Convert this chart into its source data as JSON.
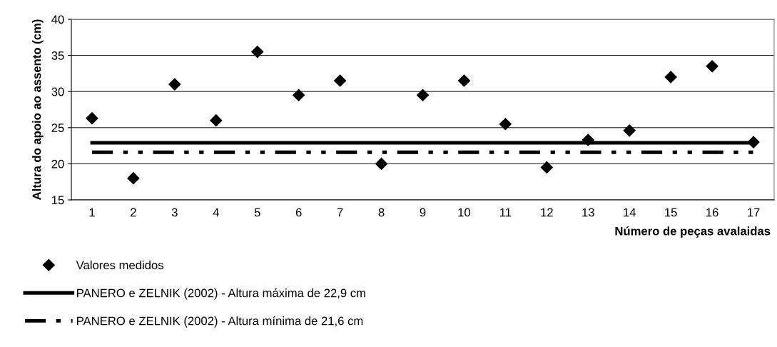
{
  "chart_data": {
    "type": "scatter",
    "ylabel": "Altura do apoio ao assento (cm)",
    "xlabel": "Número de peças avalaidas",
    "categories": [
      "1",
      "2",
      "3",
      "4",
      "5",
      "6",
      "7",
      "8",
      "9",
      "10",
      "11",
      "12",
      "13",
      "14",
      "15",
      "16",
      "17"
    ],
    "series": [
      {
        "name": "Valores medidos",
        "marker": "diamond",
        "color": "#000000",
        "values": [
          26.3,
          18,
          31,
          26,
          35.5,
          29.5,
          31.5,
          20,
          29.5,
          31.5,
          25.5,
          19.5,
          23.3,
          24.6,
          32,
          33.5,
          23
        ]
      },
      {
        "name": "PANERO e ZELNIK (2002) - Altura máxima de 22,9 cm",
        "type": "line",
        "marker": "none",
        "line_style": "solid",
        "color": "#000000",
        "values": [
          22.9,
          22.9,
          22.9,
          22.9,
          22.9,
          22.9,
          22.9,
          22.9,
          22.9,
          22.9,
          22.9,
          22.9,
          22.9,
          22.9,
          22.9,
          22.9,
          22.9
        ]
      },
      {
        "name": "PANERO e ZELNIK (2002) - Altura mínima de 21,6 cm",
        "type": "line",
        "marker": "none",
        "line_style": "dashed",
        "color": "#000000",
        "values": [
          21.6,
          21.6,
          21.6,
          21.6,
          21.6,
          21.6,
          21.6,
          21.6,
          21.6,
          21.6,
          21.6,
          21.6,
          21.6,
          21.6,
          21.6,
          21.6,
          21.6
        ]
      }
    ],
    "ylim": [
      15,
      40
    ],
    "yticks": [
      15,
      20,
      25,
      30,
      35,
      40
    ],
    "grid": "y",
    "legend": "bottom"
  }
}
